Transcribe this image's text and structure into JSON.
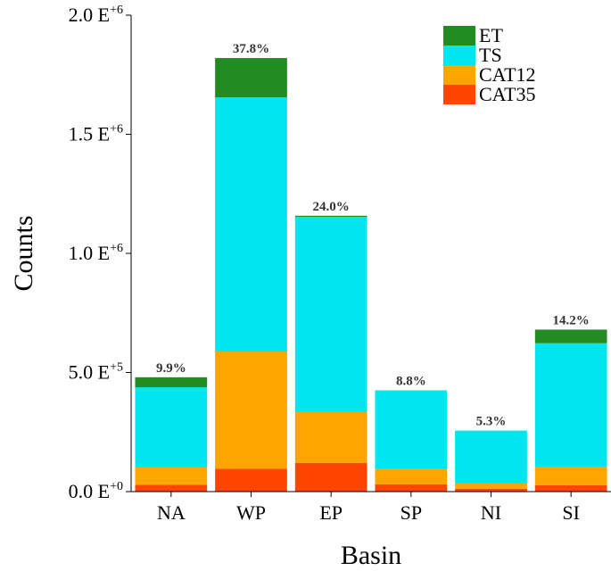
{
  "chart_data": {
    "type": "bar",
    "stacked": true,
    "xlabel": "Basin",
    "ylabel": "Counts",
    "ylim": [
      0,
      2000000
    ],
    "categories": [
      "NA",
      "WP",
      "EP",
      "SP",
      "NI",
      "SI"
    ],
    "series": [
      {
        "name": "CAT35",
        "color": "#FF4500",
        "values": [
          28000,
          96000,
          120000,
          30000,
          12000,
          27000
        ]
      },
      {
        "name": "CAT12",
        "color": "#FFA500",
        "values": [
          75000,
          492000,
          215000,
          65000,
          22000,
          78000
        ]
      },
      {
        "name": "TS",
        "color": "#00E5EE",
        "values": [
          335000,
          1067000,
          818000,
          330000,
          222000,
          518000
        ]
      },
      {
        "name": "ET",
        "color": "#228B22",
        "values": [
          42000,
          165000,
          5000,
          0,
          0,
          57000
        ]
      }
    ],
    "bar_labels": [
      "9.9%",
      "37.8%",
      "24.0%",
      "8.8%",
      "5.3%",
      "14.2%"
    ],
    "yticks": [
      {
        "value": 0,
        "mantissa": "0.0 E",
        "exponent": "+0"
      },
      {
        "value": 500000,
        "mantissa": "5.0 E",
        "exponent": "+5"
      },
      {
        "value": 1000000,
        "mantissa": "1.0 E",
        "exponent": "+6"
      },
      {
        "value": 1500000,
        "mantissa": "1.5 E",
        "exponent": "+6"
      },
      {
        "value": 2000000,
        "mantissa": "2.0 E",
        "exponent": "+6"
      }
    ],
    "legend": {
      "position": "top-right",
      "order": [
        "ET",
        "TS",
        "CAT12",
        "CAT35"
      ]
    },
    "grid": false
  }
}
